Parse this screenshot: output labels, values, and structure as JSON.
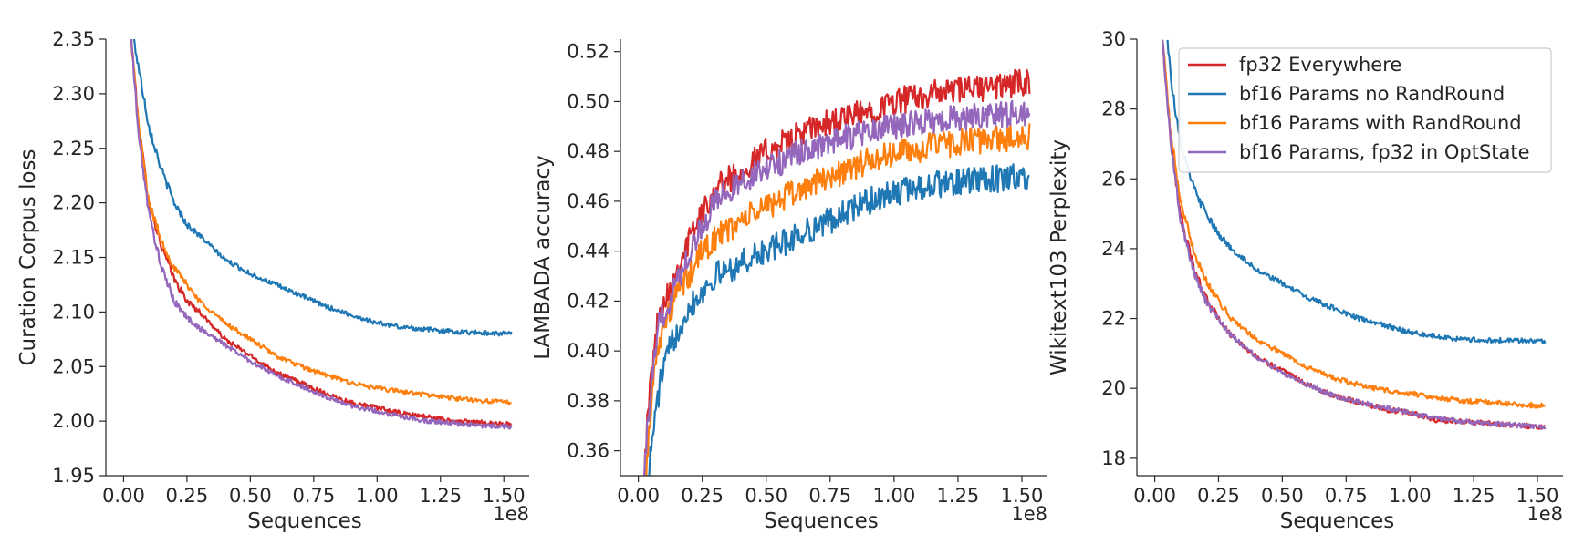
{
  "figure": {
    "series_colors": {
      "fp32 Everywhere": "#d62728",
      "bf16 Params no RandRound": "#1f77b4",
      "bf16 Params with RandRound": "#ff7f0e",
      "bf16 Params, fp32 in OptState": "#9467bd"
    },
    "legend": {
      "placement": "top-right of third panel",
      "entries": [
        "fp32 Everywhere",
        "bf16 Params no RandRound",
        "bf16 Params with RandRound",
        "bf16 Params, fp32 in OptState"
      ]
    }
  },
  "chart_data": [
    {
      "type": "line",
      "xlabel": "Sequences",
      "ylabel": "Curation Corpus loss",
      "x_offset_label": "1e8",
      "xlim": [
        -0.07,
        1.6
      ],
      "ylim": [
        1.95,
        2.35
      ],
      "xticks": [
        0.0,
        0.25,
        0.5,
        0.75,
        1.0,
        1.25,
        1.5
      ],
      "xtick_labels": [
        "0.00",
        "0.25",
        "0.50",
        "0.75",
        "1.00",
        "1.25",
        "1.50"
      ],
      "yticks": [
        1.95,
        2.0,
        2.05,
        2.1,
        2.15,
        2.2,
        2.25,
        2.3,
        2.35
      ],
      "ytick_labels": [
        "1.95",
        "2.00",
        "2.05",
        "2.10",
        "2.15",
        "2.20",
        "2.25",
        "2.30",
        "2.35"
      ],
      "grid": false,
      "series": [
        {
          "name": "fp32 Everywhere",
          "x": [
            0.03,
            0.06,
            0.1,
            0.15,
            0.2,
            0.25,
            0.3,
            0.4,
            0.5,
            0.6,
            0.7,
            0.8,
            0.9,
            1.0,
            1.1,
            1.2,
            1.3,
            1.4,
            1.53
          ],
          "y": [
            2.35,
            2.27,
            2.2,
            2.16,
            2.13,
            2.11,
            2.1,
            2.075,
            2.06,
            2.045,
            2.035,
            2.025,
            2.017,
            2.012,
            2.007,
            2.004,
            2.0,
            1.999,
            1.997
          ]
        },
        {
          "name": "bf16 Params no RandRound",
          "x": [
            0.04,
            0.07,
            0.1,
            0.15,
            0.2,
            0.25,
            0.3,
            0.4,
            0.5,
            0.6,
            0.7,
            0.8,
            0.9,
            1.0,
            1.1,
            1.2,
            1.3,
            1.4,
            1.53
          ],
          "y": [
            2.35,
            2.31,
            2.27,
            2.23,
            2.2,
            2.18,
            2.17,
            2.148,
            2.135,
            2.125,
            2.115,
            2.105,
            2.097,
            2.09,
            2.086,
            2.084,
            2.082,
            2.081,
            2.08
          ]
        },
        {
          "name": "bf16 Params with RandRound",
          "x": [
            0.03,
            0.06,
            0.1,
            0.15,
            0.2,
            0.25,
            0.3,
            0.4,
            0.5,
            0.6,
            0.7,
            0.8,
            0.9,
            1.0,
            1.1,
            1.2,
            1.3,
            1.4,
            1.53
          ],
          "y": [
            2.35,
            2.27,
            2.2,
            2.165,
            2.14,
            2.125,
            2.11,
            2.09,
            2.075,
            2.06,
            2.05,
            2.042,
            2.035,
            2.03,
            2.027,
            2.024,
            2.021,
            2.019,
            2.017
          ]
        },
        {
          "name": "bf16 Params, fp32 in OptState",
          "x": [
            0.03,
            0.06,
            0.1,
            0.15,
            0.2,
            0.25,
            0.3,
            0.4,
            0.5,
            0.6,
            0.7,
            0.8,
            0.9,
            1.0,
            1.1,
            1.2,
            1.3,
            1.4,
            1.53
          ],
          "y": [
            2.35,
            2.26,
            2.19,
            2.14,
            2.11,
            2.095,
            2.085,
            2.07,
            2.055,
            2.042,
            2.032,
            2.022,
            2.014,
            2.009,
            2.004,
            2.0,
            1.998,
            1.996,
            1.995
          ]
        }
      ]
    },
    {
      "type": "line",
      "xlabel": "Sequences",
      "ylabel": "LAMBADA accuracy",
      "x_offset_label": "1e8",
      "xlim": [
        -0.07,
        1.6
      ],
      "ylim": [
        0.35,
        0.525
      ],
      "xticks": [
        0.0,
        0.25,
        0.5,
        0.75,
        1.0,
        1.25,
        1.5
      ],
      "xtick_labels": [
        "0.00",
        "0.25",
        "0.50",
        "0.75",
        "1.00",
        "1.25",
        "1.50"
      ],
      "yticks": [
        0.36,
        0.38,
        0.4,
        0.42,
        0.44,
        0.46,
        0.48,
        0.5,
        0.52
      ],
      "ytick_labels": [
        "0.36",
        "0.38",
        "0.40",
        "0.42",
        "0.44",
        "0.46",
        "0.48",
        "0.50",
        "0.52"
      ],
      "grid": false,
      "series": [
        {
          "name": "fp32 Everywhere",
          "x": [
            0.02,
            0.05,
            0.08,
            0.12,
            0.16,
            0.2,
            0.25,
            0.3,
            0.4,
            0.5,
            0.6,
            0.7,
            0.8,
            0.9,
            1.0,
            1.1,
            1.2,
            1.3,
            1.4,
            1.53
          ],
          "y": [
            0.35,
            0.39,
            0.415,
            0.425,
            0.435,
            0.445,
            0.455,
            0.465,
            0.472,
            0.48,
            0.485,
            0.49,
            0.493,
            0.496,
            0.5,
            0.502,
            0.504,
            0.505,
            0.506,
            0.508
          ]
        },
        {
          "name": "bf16 Params no RandRound",
          "x": [
            0.04,
            0.06,
            0.09,
            0.12,
            0.16,
            0.2,
            0.25,
            0.3,
            0.4,
            0.5,
            0.6,
            0.7,
            0.8,
            0.9,
            1.0,
            1.1,
            1.2,
            1.3,
            1.4,
            1.53
          ],
          "y": [
            0.35,
            0.37,
            0.39,
            0.4,
            0.41,
            0.418,
            0.424,
            0.43,
            0.435,
            0.44,
            0.445,
            0.45,
            0.455,
            0.46,
            0.463,
            0.466,
            0.467,
            0.468,
            0.469,
            0.47
          ]
        },
        {
          "name": "bf16 Params with RandRound",
          "x": [
            0.03,
            0.05,
            0.08,
            0.12,
            0.16,
            0.2,
            0.25,
            0.3,
            0.4,
            0.5,
            0.6,
            0.7,
            0.8,
            0.9,
            1.0,
            1.1,
            1.2,
            1.3,
            1.4,
            1.53
          ],
          "y": [
            0.35,
            0.38,
            0.405,
            0.415,
            0.425,
            0.43,
            0.44,
            0.445,
            0.452,
            0.458,
            0.463,
            0.468,
            0.472,
            0.476,
            0.479,
            0.481,
            0.483,
            0.484,
            0.485,
            0.486
          ]
        },
        {
          "name": "bf16 Params, fp32 in OptState",
          "x": [
            0.02,
            0.05,
            0.08,
            0.12,
            0.16,
            0.2,
            0.25,
            0.3,
            0.4,
            0.5,
            0.6,
            0.7,
            0.8,
            0.9,
            1.0,
            1.1,
            1.2,
            1.3,
            1.4,
            1.53
          ],
          "y": [
            0.35,
            0.385,
            0.41,
            0.42,
            0.43,
            0.44,
            0.45,
            0.46,
            0.468,
            0.473,
            0.478,
            0.482,
            0.485,
            0.488,
            0.49,
            0.492,
            0.493,
            0.494,
            0.495,
            0.496
          ]
        }
      ]
    },
    {
      "type": "line",
      "xlabel": "Sequences",
      "ylabel": "Wikitext103 Perplexity",
      "x_offset_label": "1e8",
      "xlim": [
        -0.07,
        1.6
      ],
      "ylim": [
        17.5,
        30.0
      ],
      "xticks": [
        0.0,
        0.25,
        0.5,
        0.75,
        1.0,
        1.25,
        1.5
      ],
      "xtick_labels": [
        "0.00",
        "0.25",
        "0.50",
        "0.75",
        "1.00",
        "1.25",
        "1.50"
      ],
      "yticks": [
        18,
        20,
        22,
        24,
        26,
        28,
        30
      ],
      "ytick_labels": [
        "18",
        "20",
        "22",
        "24",
        "26",
        "28",
        "30"
      ],
      "grid": false,
      "series": [
        {
          "name": "fp32 Everywhere",
          "x": [
            0.03,
            0.06,
            0.1,
            0.15,
            0.2,
            0.25,
            0.3,
            0.4,
            0.5,
            0.6,
            0.7,
            0.8,
            0.9,
            1.0,
            1.1,
            1.2,
            1.3,
            1.4,
            1.53
          ],
          "y": [
            30.0,
            27.3,
            25.0,
            23.5,
            22.6,
            22.0,
            21.5,
            20.9,
            20.5,
            20.1,
            19.8,
            19.6,
            19.4,
            19.3,
            19.1,
            19.05,
            19.0,
            18.95,
            18.9
          ]
        },
        {
          "name": "bf16 Params no RandRound",
          "x": [
            0.05,
            0.07,
            0.1,
            0.15,
            0.2,
            0.25,
            0.3,
            0.4,
            0.5,
            0.6,
            0.7,
            0.8,
            0.9,
            1.0,
            1.1,
            1.2,
            1.3,
            1.4,
            1.53
          ],
          "y": [
            30.0,
            28.5,
            27.0,
            25.8,
            25.0,
            24.4,
            24.0,
            23.4,
            23.0,
            22.6,
            22.3,
            22.0,
            21.8,
            21.6,
            21.5,
            21.4,
            21.38,
            21.37,
            21.35
          ]
        },
        {
          "name": "bf16 Params with RandRound",
          "x": [
            0.03,
            0.06,
            0.1,
            0.15,
            0.2,
            0.25,
            0.3,
            0.4,
            0.5,
            0.6,
            0.7,
            0.8,
            0.9,
            1.0,
            1.1,
            1.2,
            1.3,
            1.4,
            1.53
          ],
          "y": [
            30.0,
            27.5,
            25.4,
            24.0,
            23.1,
            22.5,
            22.0,
            21.4,
            21.0,
            20.6,
            20.3,
            20.1,
            19.95,
            19.85,
            19.75,
            19.65,
            19.6,
            19.55,
            19.5
          ]
        },
        {
          "name": "bf16 Params, fp32 in OptState",
          "x": [
            0.03,
            0.06,
            0.1,
            0.15,
            0.2,
            0.25,
            0.3,
            0.4,
            0.5,
            0.6,
            0.7,
            0.8,
            0.9,
            1.0,
            1.1,
            1.2,
            1.3,
            1.4,
            1.53
          ],
          "y": [
            30.0,
            27.2,
            24.9,
            23.4,
            22.5,
            21.95,
            21.5,
            20.9,
            20.45,
            20.1,
            19.8,
            19.6,
            19.45,
            19.3,
            19.15,
            19.05,
            19.0,
            18.95,
            18.9
          ]
        }
      ]
    }
  ]
}
